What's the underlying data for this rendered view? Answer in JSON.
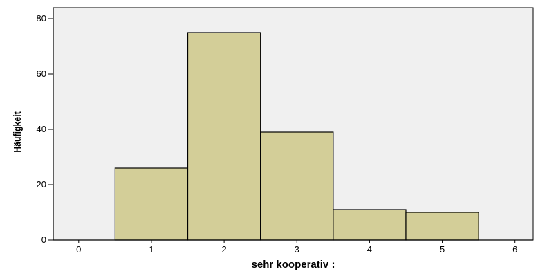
{
  "chart_data": {
    "type": "bar",
    "subtype": "histogram",
    "title": "",
    "xlabel": "sehr kooperativ :",
    "ylabel": "Häufigkeit",
    "bins": [
      {
        "from": 0.5,
        "to": 1.5,
        "value": 26
      },
      {
        "from": 1.5,
        "to": 2.5,
        "value": 75
      },
      {
        "from": 2.5,
        "to": 3.5,
        "value": 39
      },
      {
        "from": 3.5,
        "to": 4.5,
        "value": 11
      },
      {
        "from": 4.5,
        "to": 5.5,
        "value": 10
      }
    ],
    "xlim": [
      -0.35,
      6.25
    ],
    "ylim": [
      0,
      84
    ],
    "x_ticks": [
      "0",
      "1",
      "2",
      "3",
      "4",
      "5",
      "6"
    ],
    "y_ticks": [
      "0",
      "20",
      "40",
      "60",
      "80"
    ],
    "grid": false,
    "legend": "none",
    "colors": {
      "bar_fill": "#d3ce98",
      "bar_stroke": "#000000",
      "plot_background": "#f0f0f0",
      "axis": "#000000"
    }
  }
}
